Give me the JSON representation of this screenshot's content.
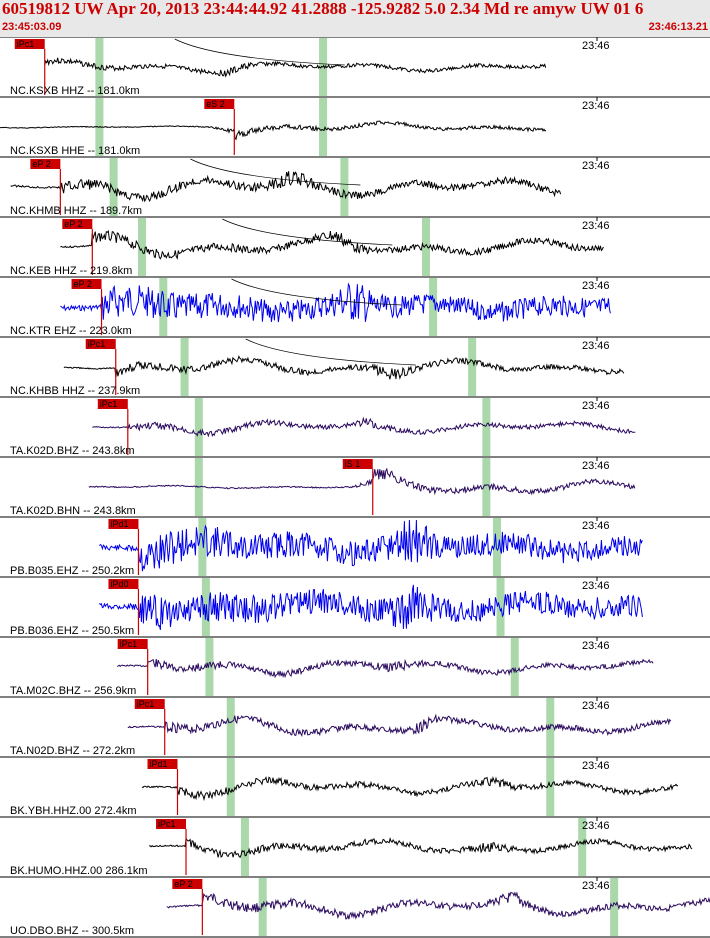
{
  "header": {
    "title": "60519812 UW Apr 20, 2013 23:44:44.92   41.2888 -125.9282  5.0 2.34 Md re amyw UW 01   6",
    "start_time": "23:45:03.09",
    "end_time": "23:46:13.21"
  },
  "chart_data": {
    "type": "line",
    "tick_label": "23:46",
    "colors": {
      "black": "#000000",
      "blue": "#0000ee",
      "indigo": "#2a0a5e",
      "pick": "#cc0000",
      "window": "#aad8aa"
    },
    "traces": [
      {
        "label": "NC.KSXB HHZ -- 181.0km",
        "pick": "iPc1",
        "color": "black",
        "start": 0.063,
        "pick_x": 0.063,
        "end": 0.77,
        "amp": 9,
        "burst_x": 0.33,
        "green": [
          0.14,
          0.455
        ],
        "curve": true
      },
      {
        "label": "NC.KSXB HHE -- 181.0km",
        "pick": "eS 2",
        "color": "black",
        "start": 0.0,
        "pick_x": 0.33,
        "end": 0.77,
        "amp": 8,
        "burst_x": 0.33,
        "green": [
          0.14,
          0.455
        ],
        "curve": false
      },
      {
        "label": "NC.KHMB HHZ -- 189.7km",
        "pick": "eP 2",
        "color": "black",
        "start": 0.015,
        "pick_x": 0.085,
        "end": 0.79,
        "amp": 18,
        "burst_x": 0.41,
        "green": [
          0.16,
          0.485
        ],
        "curve": true
      },
      {
        "label": "NC.KEB HHZ -- 219.8km",
        "pick": "eP 2",
        "color": "black",
        "start": 0.085,
        "pick_x": 0.13,
        "end": 0.85,
        "amp": 16,
        "burst_x": 0.48,
        "green": [
          0.2,
          0.6
        ],
        "curve": true
      },
      {
        "label": "NC.KTR EHZ -- 223.0km",
        "pick": "eP 2",
        "color": "blue",
        "start": 0.085,
        "pick_x": 0.143,
        "end": 0.86,
        "amp": 20,
        "burst_x": 0.5,
        "green": [
          0.23,
          0.61
        ],
        "curve": true
      },
      {
        "label": "NC.KHBB HHZ -- 237.9km",
        "pick": "iPc1",
        "color": "black",
        "start": 0.09,
        "pick_x": 0.163,
        "end": 0.88,
        "amp": 14,
        "burst_x": 0.55,
        "green": [
          0.26,
          0.665
        ],
        "curve": true
      },
      {
        "label": "TA.K02D.BHZ -- 243.8km",
        "pick": "iPc1",
        "color": "indigo",
        "start": 0.13,
        "pick_x": 0.18,
        "end": 0.895,
        "amp": 11,
        "burst_x": 0.52,
        "green": [
          0.28,
          0.685
        ],
        "curve": false
      },
      {
        "label": "TA.K02D.BHN -- 243.8km",
        "pick": "iS 1",
        "color": "indigo",
        "start": 0.125,
        "pick_x": 0.525,
        "end": 0.895,
        "amp": 12,
        "burst_x": 0.53,
        "green": [
          0.28,
          0.685
        ],
        "curve": false
      },
      {
        "label": "PB.B035.EHZ -- 250.2km",
        "pick": "iPd1",
        "color": "blue",
        "start": 0.14,
        "pick_x": 0.195,
        "end": 0.905,
        "amp": 22,
        "burst_x": 0.58,
        "green": [
          0.285,
          0.7
        ],
        "curve": false
      },
      {
        "label": "PB.B036.EHZ -- 250.5km",
        "pick": "iPd0",
        "color": "blue",
        "start": 0.14,
        "pick_x": 0.195,
        "end": 0.905,
        "amp": 22,
        "burst_x": 0.58,
        "green": [
          0.29,
          0.705
        ],
        "curve": false
      },
      {
        "label": "TA.M02C.BHZ -- 256.9km",
        "pick": "iPc1",
        "color": "indigo",
        "start": 0.165,
        "pick_x": 0.208,
        "end": 0.92,
        "amp": 13,
        "burst_x": 0.56,
        "green": [
          0.295,
          0.725
        ],
        "curve": false
      },
      {
        "label": "TA.N02D.BHZ -- 272.2km",
        "pick": "iPc1",
        "color": "indigo",
        "start": 0.18,
        "pick_x": 0.232,
        "end": 0.945,
        "amp": 14,
        "burst_x": 0.6,
        "green": [
          0.325,
          0.775
        ],
        "curve": false
      },
      {
        "label": "BK.YBH.HHZ.00 272.4km",
        "pick": "iPd1",
        "color": "black",
        "start": 0.2,
        "pick_x": 0.25,
        "end": 0.955,
        "amp": 13,
        "burst_x": 0.7,
        "green": [
          0.325,
          0.775
        ],
        "curve": false
      },
      {
        "label": "BK.HUMO.HHZ.00 286.1km",
        "pick": "iPc1",
        "color": "black",
        "start": 0.21,
        "pick_x": 0.262,
        "end": 0.975,
        "amp": 13,
        "burst_x": 0.69,
        "green": [
          0.345,
          0.82
        ],
        "curve": false
      },
      {
        "label": "UO.DBO.BHZ -- 300.5km",
        "pick": "eP 2",
        "color": "indigo",
        "start": 0.235,
        "pick_x": 0.285,
        "end": 1.0,
        "amp": 16,
        "burst_x": 0.73,
        "green": [
          0.37,
          0.865
        ],
        "curve": false
      }
    ]
  }
}
